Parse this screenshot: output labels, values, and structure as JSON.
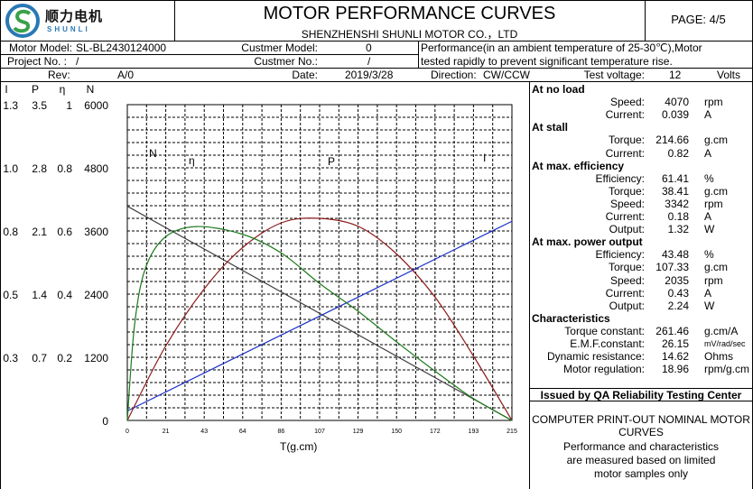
{
  "header": {
    "logo_name": "顺力电机",
    "logo_sub": "SHUNLI",
    "title": "MOTOR PERFORMANCE CURVES",
    "company": "SHENZHENSHI SHUNLI MOTOR CO.，LTD",
    "page_label": "PAGE: 4/5"
  },
  "info": {
    "motor_model_label": "Motor Model:",
    "motor_model": "SL-BL2430124000",
    "customer_model_label": "Custmer Model:",
    "customer_model": "0",
    "project_no_label": "Project No. :",
    "project_no": "/",
    "customer_no_label": "Custmer No.:",
    "customer_no": "/",
    "rev_label": "Rev:",
    "rev": "A/0",
    "date_label": "Date:",
    "date": "2019/3/28",
    "direction_label": "Direction:",
    "direction": "CW/CCW",
    "note_line1": "Performance(in an ambient temperature of 25-30℃),Motor",
    "note_line2": "tested rapidly to prevent significant temperature rise.",
    "test_voltage_label": "Test voltage:",
    "test_voltage": "12",
    "test_voltage_unit": "Volts"
  },
  "axis_headers": {
    "i": "I",
    "p": "P",
    "eta": "η",
    "n": "N"
  },
  "axis_rows": [
    {
      "i": "1.3",
      "p": "3.5",
      "eta": "1",
      "n": "6000"
    },
    {
      "i": "1.0",
      "p": "2.8",
      "eta": "0.8",
      "n": "4800"
    },
    {
      "i": "0.8",
      "p": "2.1",
      "eta": "0.6",
      "n": "3600"
    },
    {
      "i": "0.5",
      "p": "1.4",
      "eta": "0.4",
      "n": "2400"
    },
    {
      "i": "0.3",
      "p": "0.7",
      "eta": "0.2",
      "n": "1200"
    },
    {
      "i": "",
      "p": "",
      "eta": "",
      "n": "0"
    }
  ],
  "specs": {
    "no_load": {
      "title": "At no load",
      "rows": [
        {
          "label": "Speed:",
          "value": "4070",
          "unit": "rpm"
        },
        {
          "label": "Current:",
          "value": "0.039",
          "unit": "A"
        }
      ]
    },
    "stall": {
      "title": "At stall",
      "rows": [
        {
          "label": "Torque:",
          "value": "214.66",
          "unit": "g.cm"
        },
        {
          "label": "Current:",
          "value": "0.82",
          "unit": "A"
        }
      ]
    },
    "max_eff": {
      "title": "At max. efficiency",
      "rows": [
        {
          "label": "Efficiency:",
          "value": "61.41",
          "unit": "%"
        },
        {
          "label": "Torque:",
          "value": "38.41",
          "unit": "g.cm"
        },
        {
          "label": "Speed:",
          "value": "3342",
          "unit": "rpm"
        },
        {
          "label": "Current:",
          "value": "0.18",
          "unit": "A"
        },
        {
          "label": "Output:",
          "value": "1.32",
          "unit": "W"
        }
      ]
    },
    "max_power": {
      "title": "At max. power output",
      "rows": [
        {
          "label": "Efficiency:",
          "value": "43.48",
          "unit": "%"
        },
        {
          "label": "Torque:",
          "value": "107.33",
          "unit": "g.cm"
        },
        {
          "label": "Speed:",
          "value": "2035",
          "unit": "rpm"
        },
        {
          "label": "Current:",
          "value": "0.43",
          "unit": "A"
        },
        {
          "label": "Output:",
          "value": "2.24",
          "unit": "W"
        }
      ]
    },
    "characteristics": {
      "title": "Characteristics",
      "rows": [
        {
          "label": "Torque constant:",
          "value": "261.46",
          "unit": "g.cm/A"
        },
        {
          "label": "E.M.F.constant:",
          "value": "26.15",
          "unit": "mV/rad/sec"
        },
        {
          "label": "Dynamic resistance:",
          "value": "14.62",
          "unit": "Ohms"
        },
        {
          "label": "Motor regulation:",
          "value": "18.96",
          "unit": "rpm/g.cm"
        }
      ]
    }
  },
  "footer": {
    "issued": "Issued by QA Reliability Testing Center",
    "note_line1": "COMPUTER PRINT-OUT NOMINAL MOTOR",
    "note_line2": "CURVES",
    "note_line3": "Performance and characteristics",
    "note_line4": "are measured based on limited",
    "note_line5": "motor samples only"
  },
  "colors": {
    "speed_line": "#404040",
    "current_line": "#1a2ec8",
    "power_line": "#8b1a1a",
    "efficiency_line": "#1d7a1d",
    "logo_blue": "#2a78b4",
    "logo_green": "#3aa14a"
  },
  "chart_data": {
    "type": "line",
    "xlabel": "T(g.cm)",
    "x_ticks": [
      "0",
      "21",
      "43",
      "64",
      "86",
      "107",
      "129",
      "150",
      "172",
      "193",
      "215"
    ],
    "xlim": [
      0,
      214.66
    ],
    "curve_labels": {
      "speed": "N",
      "efficiency": "η",
      "power": "P",
      "current": "I"
    },
    "axes": {
      "speed_rpm": [
        0,
        6000
      ],
      "current_A": [
        0,
        1.3
      ],
      "power_W": [
        0,
        3.5
      ],
      "efficiency": [
        0,
        1
      ]
    },
    "series": [
      {
        "name": "N",
        "unit": "rpm",
        "x": [
          0,
          214.66
        ],
        "y": [
          4070,
          0
        ]
      },
      {
        "name": "I",
        "unit": "A",
        "x": [
          0,
          214.66
        ],
        "y": [
          0.039,
          0.82
        ]
      },
      {
        "name": "P",
        "unit": "W",
        "x": [
          0,
          21,
          43,
          64,
          86,
          107,
          129,
          150,
          172,
          193,
          214.66
        ],
        "y": [
          0,
          0.81,
          1.46,
          1.91,
          2.19,
          2.24,
          2.15,
          1.85,
          1.36,
          0.72,
          0
        ]
      },
      {
        "name": "η",
        "unit": "",
        "x": [
          0,
          4,
          10,
          21,
          38.41,
          64,
          86,
          107,
          129,
          150,
          172,
          193,
          214.66
        ],
        "y": [
          0,
          0.3,
          0.48,
          0.58,
          0.614,
          0.59,
          0.53,
          0.435,
          0.345,
          0.25,
          0.155,
          0.07,
          0
        ]
      }
    ]
  }
}
